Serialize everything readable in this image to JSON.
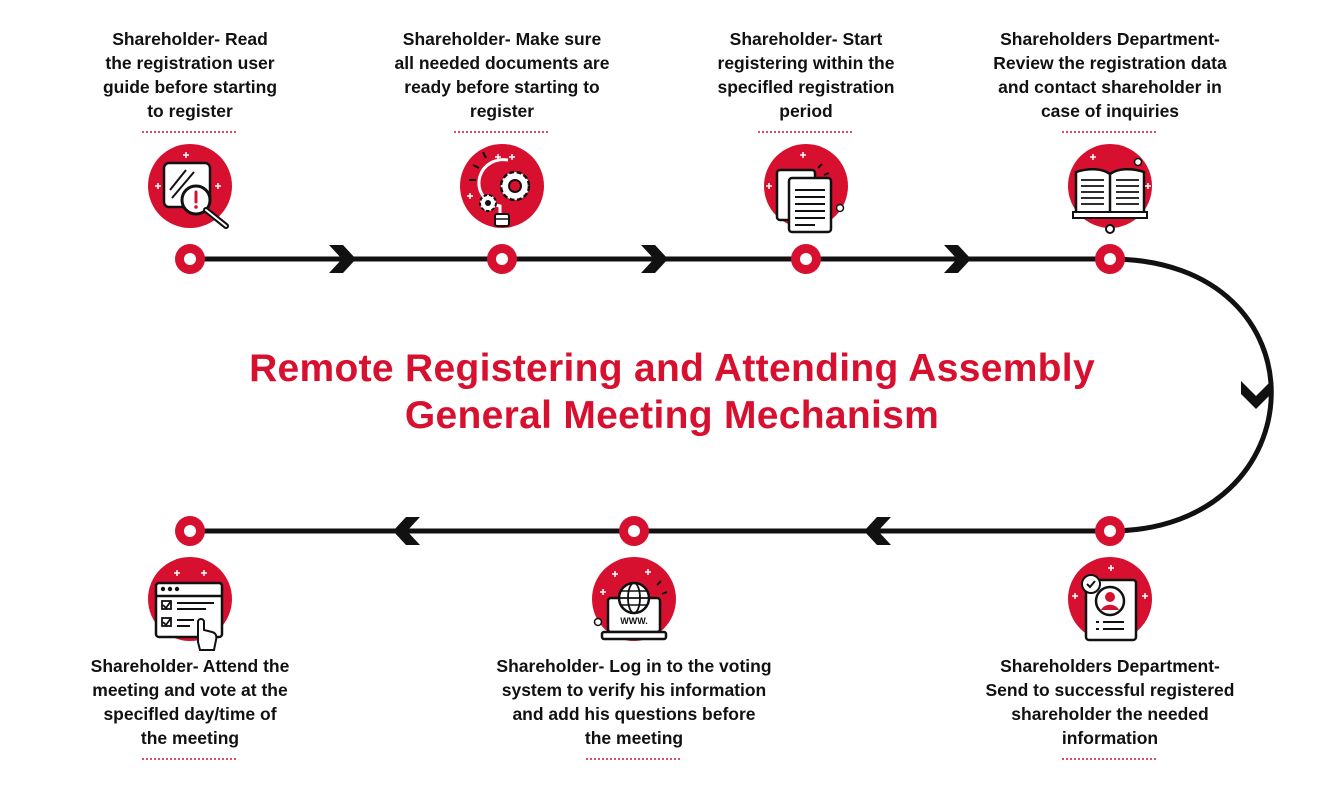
{
  "title": {
    "line1": "Remote Registering and Attending Assembly",
    "line2": "General Meeting Mechanism"
  },
  "colors": {
    "accent": "#d7102f",
    "line": "#111111",
    "text": "#111111"
  },
  "steps": [
    {
      "lines": [
        "Shareholder- Read",
        "the registration user",
        "guide before starting",
        "to register"
      ],
      "icon": "guide-magnifier-alert-icon"
    },
    {
      "lines": [
        "Shareholder- Make sure",
        "all needed documents are",
        "ready before starting to",
        "register"
      ],
      "icon": "lightbulb-gears-icon"
    },
    {
      "lines": [
        "Shareholder-  Start",
        "registering within the",
        "specifled registration",
        "period"
      ],
      "icon": "documents-icon"
    },
    {
      "lines": [
        "Shareholders Department-",
        "Review the registration data",
        "and contact shareholder in",
        "case of inquiries"
      ],
      "icon": "open-book-icon"
    },
    {
      "lines": [
        "Shareholders Department-",
        "Send to successful registered",
        "shareholder the needed",
        "information"
      ],
      "icon": "user-profile-document-icon"
    },
    {
      "lines": [
        "Shareholder-  Log in to the voting",
        "system to verify his information",
        "and add his questions before",
        "the meeting"
      ],
      "icon": "laptop-globe-icon"
    },
    {
      "lines": [
        "Shareholder-  Attend the",
        "meeting and vote at the",
        "specifled day/time of",
        "the meeting"
      ],
      "icon": "checklist-click-icon"
    }
  ]
}
